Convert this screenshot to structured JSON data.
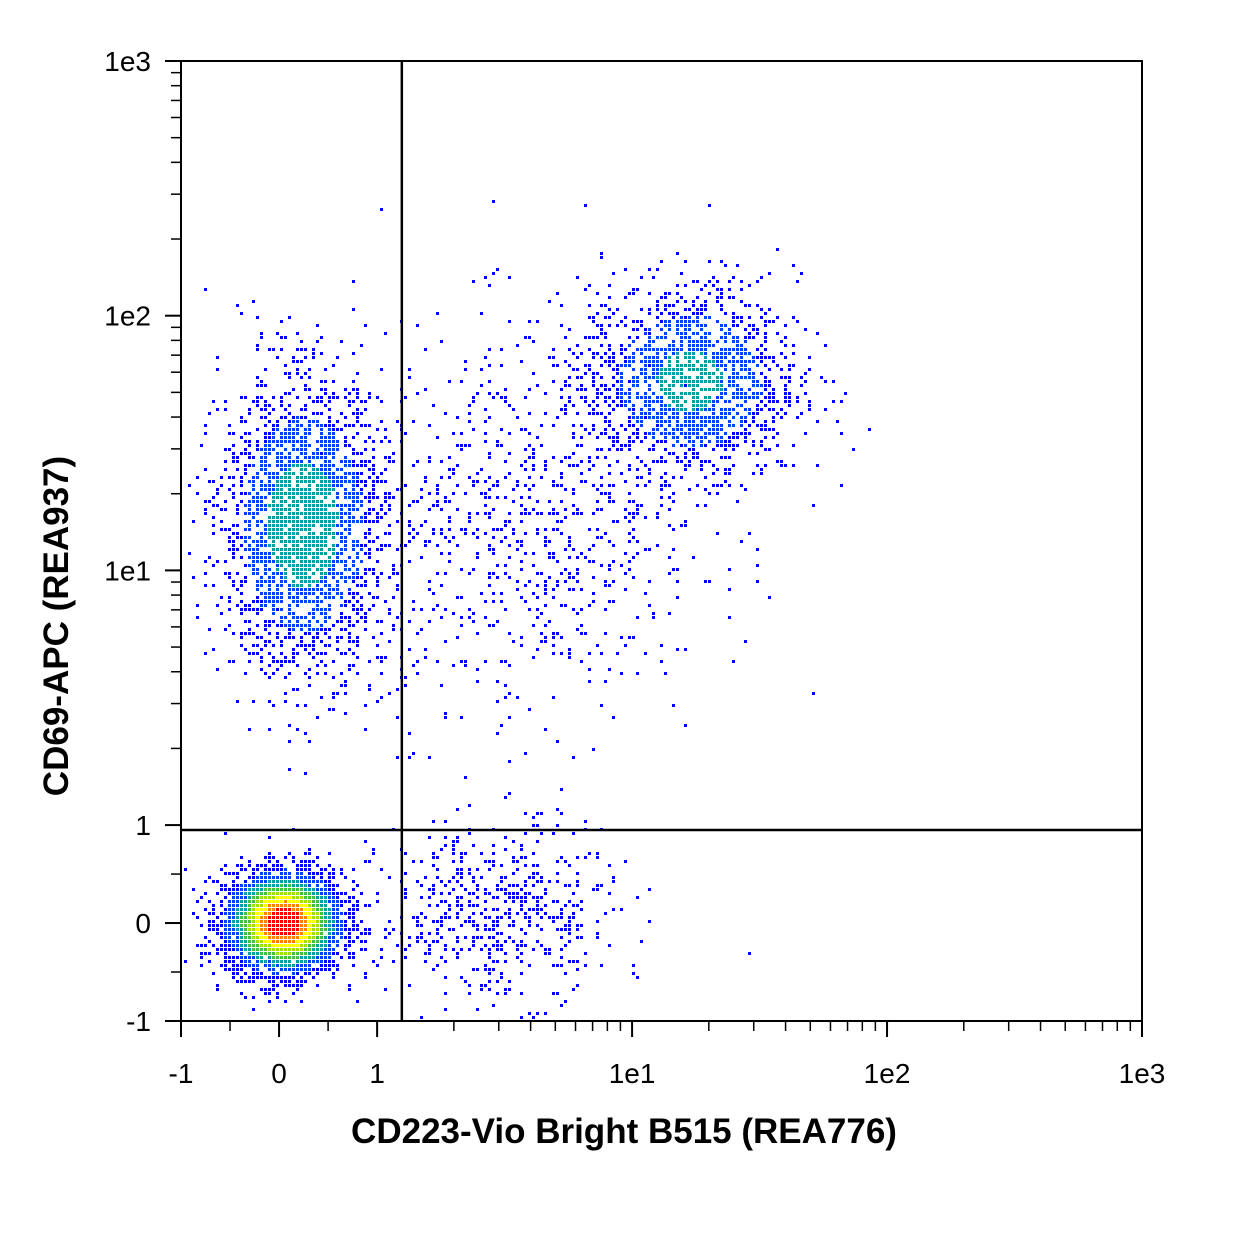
{
  "chart_data": {
    "type": "scatter",
    "subtype": "flow-cytometry density dot plot",
    "xlabel": "CD223-Vio Bright B515 (REA776)",
    "ylabel": "CD69-APC (REA937)",
    "x_scale": "biexponential",
    "y_scale": "biexponential",
    "xlim": [
      -1,
      1000
    ],
    "ylim": [
      -1,
      1000
    ],
    "x_ticks": [
      {
        "value": -1,
        "label": "-1"
      },
      {
        "value": 0,
        "label": "0"
      },
      {
        "value": 1,
        "label": "1"
      },
      {
        "value": 10,
        "label": "1e1"
      },
      {
        "value": 100,
        "label": "1e2"
      },
      {
        "value": 1000,
        "label": "1e3"
      }
    ],
    "y_ticks": [
      {
        "value": -1,
        "label": "-1"
      },
      {
        "value": 0,
        "label": "0"
      },
      {
        "value": 1,
        "label": "1"
      },
      {
        "value": 10,
        "label": "1e1"
      },
      {
        "value": 100,
        "label": "1e2"
      },
      {
        "value": 1000,
        "label": "1e3"
      }
    ],
    "quadrant_gate": {
      "x": 1.25,
      "y": 0.95
    },
    "grid": false,
    "legend": "none",
    "density_colormap": [
      "#0000ff",
      "#0040ff",
      "#00a0a0",
      "#40c040",
      "#a0e000",
      "#ffff00",
      "#ff8000",
      "#ff0000"
    ],
    "populations": [
      {
        "cx": 0.05,
        "cy": 0.0,
        "sx": 0.3,
        "sy": 0.26,
        "weight": 0.42,
        "peak": 1.0
      },
      {
        "cx": 0.25,
        "cy": 15.0,
        "sx": 0.42,
        "sy": 0.75,
        "weight": 0.26,
        "peak": 0.36
      },
      {
        "cx": 17.0,
        "cy": 55.0,
        "sx": 0.55,
        "sy": 0.5,
        "weight": 0.17,
        "peak": 0.3
      },
      {
        "cx": 4.0,
        "cy": 15.0,
        "sx": 0.9,
        "sy": 1.0,
        "weight": 0.09,
        "peak": 0.12
      },
      {
        "cx": 3.0,
        "cy": 0.1,
        "sx": 0.6,
        "sy": 0.45,
        "weight": 0.06,
        "peak": 0.08
      }
    ]
  }
}
